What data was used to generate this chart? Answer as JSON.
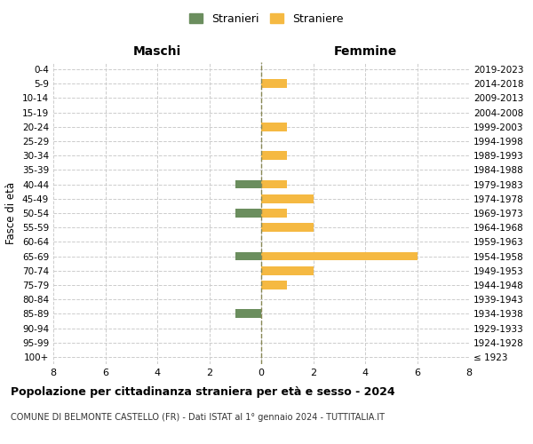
{
  "age_groups": [
    "100+",
    "95-99",
    "90-94",
    "85-89",
    "80-84",
    "75-79",
    "70-74",
    "65-69",
    "60-64",
    "55-59",
    "50-54",
    "45-49",
    "40-44",
    "35-39",
    "30-34",
    "25-29",
    "20-24",
    "15-19",
    "10-14",
    "5-9",
    "0-4"
  ],
  "birth_years": [
    "≤ 1923",
    "1924-1928",
    "1929-1933",
    "1934-1938",
    "1939-1943",
    "1944-1948",
    "1949-1953",
    "1954-1958",
    "1959-1963",
    "1964-1968",
    "1969-1973",
    "1974-1978",
    "1979-1983",
    "1984-1988",
    "1989-1993",
    "1994-1998",
    "1999-2003",
    "2004-2008",
    "2009-2013",
    "2014-2018",
    "2019-2023"
  ],
  "maschi": [
    0,
    0,
    0,
    1,
    0,
    0,
    0,
    1,
    0,
    0,
    1,
    0,
    1,
    0,
    0,
    0,
    0,
    0,
    0,
    0,
    0
  ],
  "femmine": [
    0,
    0,
    0,
    0,
    0,
    1,
    2,
    6,
    0,
    2,
    1,
    2,
    1,
    0,
    1,
    0,
    1,
    0,
    0,
    1,
    0
  ],
  "maschi_color": "#6b8e5e",
  "femmine_color": "#f5b942",
  "title": "Popolazione per cittadinanza straniera per età e sesso - 2024",
  "subtitle": "COMUNE DI BELMONTE CASTELLO (FR) - Dati ISTAT al 1° gennaio 2024 - TUTTITALIA.IT",
  "legend_maschi": "Stranieri",
  "legend_femmine": "Straniere",
  "xlabel_left": "Maschi",
  "xlabel_right": "Femmine",
  "ylabel_left": "Fasce di età",
  "xlim": 8,
  "background_color": "#ffffff",
  "grid_color": "#cccccc"
}
